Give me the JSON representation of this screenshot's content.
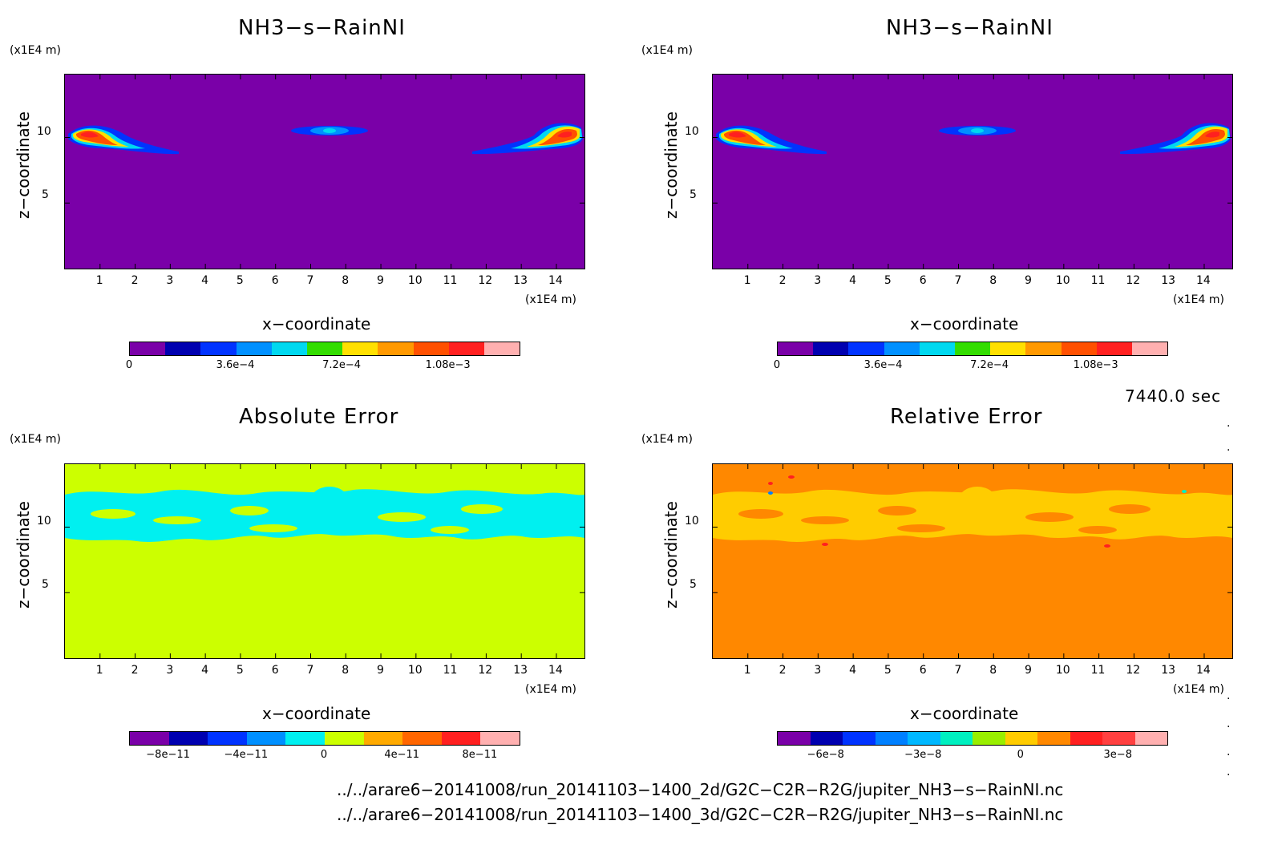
{
  "chart_data": [
    {
      "type": "heatmap",
      "title": "NH3−s−RainNI",
      "xlabel": "x−coordinate",
      "ylabel": "z−coordinate",
      "x_unit": "(x1E4 m)",
      "y_unit": "(x1E4 m)",
      "x_ticks": [
        "1",
        "2",
        "3",
        "4",
        "5",
        "6",
        "7",
        "8",
        "9",
        "10",
        "11",
        "12",
        "13",
        "14"
      ],
      "y_ticks": [
        "5",
        "10"
      ],
      "xlim": [
        0,
        14.8
      ],
      "ylim": [
        0,
        14.8
      ],
      "colorbar_labels": [
        "0",
        "3.6e−4",
        "7.2e−4",
        "1.08e−3"
      ],
      "colorbar_values": [
        0,
        0.00036,
        0.00072,
        0.00108
      ],
      "colorbar_range": [
        0,
        0.00132
      ],
      "colors": [
        "#7a00a8",
        "#0000b0",
        "#0033ff",
        "#0090ff",
        "#00d8f0",
        "#33dd00",
        "#ffe000",
        "#ff9900",
        "#ff5000",
        "#ff2020",
        "#ffb0b0"
      ],
      "background_level": 0
    },
    {
      "type": "heatmap",
      "title": "NH3−s−RainNI",
      "xlabel": "x−coordinate",
      "ylabel": "z−coordinate",
      "x_unit": "(x1E4 m)",
      "y_unit": "(x1E4 m)",
      "x_ticks": [
        "1",
        "2",
        "3",
        "4",
        "5",
        "6",
        "7",
        "8",
        "9",
        "10",
        "11",
        "12",
        "13",
        "14"
      ],
      "y_ticks": [
        "5",
        "10"
      ],
      "xlim": [
        0,
        14.8
      ],
      "ylim": [
        0,
        14.8
      ],
      "colorbar_labels": [
        "0",
        "3.6e−4",
        "7.2e−4",
        "1.08e−3"
      ],
      "colorbar_values": [
        0,
        0.00036,
        0.00072,
        0.00108
      ],
      "colorbar_range": [
        0,
        0.00132
      ],
      "colors": [
        "#7a00a8",
        "#0000b0",
        "#0033ff",
        "#0090ff",
        "#00d8f0",
        "#33dd00",
        "#ffe000",
        "#ff9900",
        "#ff5000",
        "#ff2020",
        "#ffb0b0"
      ],
      "background_level": 0
    },
    {
      "type": "heatmap",
      "title": "Absolute Error",
      "xlabel": "x−coordinate",
      "ylabel": "z−coordinate",
      "x_unit": "(x1E4 m)",
      "y_unit": "(x1E4 m)",
      "x_ticks": [
        "1",
        "2",
        "3",
        "4",
        "5",
        "6",
        "7",
        "8",
        "9",
        "10",
        "11",
        "12",
        "13",
        "14"
      ],
      "y_ticks": [
        "5",
        "10"
      ],
      "xlim": [
        0,
        14.8
      ],
      "ylim": [
        0,
        14.8
      ],
      "colorbar_labels": [
        "−8e−11",
        "−4e−11",
        "0",
        "4e−11",
        "8e−11"
      ],
      "colorbar_values": [
        -8e-11,
        -4e-11,
        0,
        4e-11,
        8e-11
      ],
      "colorbar_range": [
        -1e-10,
        1e-10
      ],
      "colors": [
        "#7a00a8",
        "#0000b0",
        "#0033ff",
        "#0090ff",
        "#00f0f0",
        "#ccff00",
        "#ffaa00",
        "#ff6600",
        "#ff2020",
        "#ffb0b0"
      ],
      "background_level": 0
    },
    {
      "type": "heatmap",
      "title": "Relative Error",
      "xlabel": "x−coordinate",
      "ylabel": "z−coordinate",
      "x_unit": "(x1E4 m)",
      "y_unit": "(x1E4 m)",
      "x_ticks": [
        "1",
        "2",
        "3",
        "4",
        "5",
        "6",
        "7",
        "8",
        "9",
        "10",
        "11",
        "12",
        "13",
        "14"
      ],
      "y_ticks": [
        "5",
        "10"
      ],
      "xlim": [
        0,
        14.8
      ],
      "ylim": [
        0,
        14.8
      ],
      "colorbar_labels": [
        "−6e−8",
        "−3e−8",
        "0",
        "3e−8"
      ],
      "colorbar_values": [
        -6e-08,
        -3e-08,
        0,
        3e-08
      ],
      "colorbar_range": [
        -7.5e-08,
        4.5e-08
      ],
      "colors": [
        "#7a00a8",
        "#0000b0",
        "#0033ff",
        "#0080ff",
        "#00b8ff",
        "#00f0c0",
        "#99ee00",
        "#ffcc00",
        "#ff8800",
        "#ff2020",
        "#ff4040",
        "#ffb0b0"
      ],
      "background_level": 0
    }
  ],
  "time_label": "7440.0 sec",
  "file_paths": [
    "../../arare6−20141008/run_20141103−1400_2d/G2C−C2R−R2G/jupiter_NH3−s−RainNI.nc",
    "../../arare6−20141008/run_20141103−1400_3d/G2C−C2R−R2G/jupiter_NH3−s−RainNI.nc"
  ]
}
